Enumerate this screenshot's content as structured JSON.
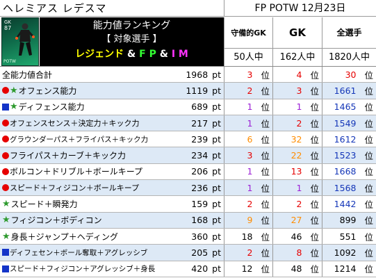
{
  "header": {
    "player_name": "ヘレミアス レデスマ",
    "event": "FP POTW 12月23日"
  },
  "card": {
    "position": "GK",
    "rating": "87",
    "badge": "POTW"
  },
  "category": {
    "line1": "能力値ランキング",
    "line2": "【 対象選手 】",
    "legend_word": "レジェンド",
    "amp": "&",
    "fp_word": "F P",
    "im_word": "I M"
  },
  "columns": [
    {
      "label": "守備的GK",
      "count": "50人中"
    },
    {
      "label": "GK",
      "count": "162人中"
    },
    {
      "label": "全選手",
      "count": "1820人中"
    }
  ],
  "units": {
    "points": "pt",
    "rank": "位"
  },
  "colors": {
    "red": "#e60000",
    "orange": "#ff8c00",
    "purple": "#9b1fd6",
    "blue": "#1436b8",
    "black": "#000000",
    "row_alt": "#dde9f6"
  },
  "rows": [
    {
      "marks": [],
      "name": "全能力値合計",
      "pts": "1968",
      "ranks": [
        {
          "v": "3",
          "c": "red"
        },
        {
          "v": "4",
          "c": "red"
        },
        {
          "v": "30",
          "c": "red"
        }
      ]
    },
    {
      "marks": [
        "circle",
        "star"
      ],
      "name": "オフェンス能力",
      "pts": "1119",
      "ranks": [
        {
          "v": "2",
          "c": "red"
        },
        {
          "v": "3",
          "c": "red"
        },
        {
          "v": "1661",
          "c": "blu"
        }
      ]
    },
    {
      "marks": [
        "square",
        "star"
      ],
      "name": "ディフェンス能力",
      "pts": "689",
      "ranks": [
        {
          "v": "1",
          "c": "pur"
        },
        {
          "v": "1",
          "c": "pur"
        },
        {
          "v": "1465",
          "c": "blu"
        }
      ]
    },
    {
      "marks": [
        "circle"
      ],
      "name": "オフェンスセンス＋決定力＋キック力",
      "pts": "217",
      "ranks": [
        {
          "v": "1",
          "c": "pur"
        },
        {
          "v": "2",
          "c": "red"
        },
        {
          "v": "1549",
          "c": "blu"
        }
      ]
    },
    {
      "marks": [
        "circle"
      ],
      "name": "グラウンダーパス＋フライパス＋キック力",
      "pts": "239",
      "ranks": [
        {
          "v": "6",
          "c": "org"
        },
        {
          "v": "32",
          "c": "org"
        },
        {
          "v": "1612",
          "c": "blu"
        }
      ]
    },
    {
      "marks": [
        "circle"
      ],
      "name": "フライパス＋カーブ＋キック力",
      "pts": "234",
      "ranks": [
        {
          "v": "3",
          "c": "red"
        },
        {
          "v": "22",
          "c": "org"
        },
        {
          "v": "1523",
          "c": "blu"
        }
      ]
    },
    {
      "marks": [
        "circle"
      ],
      "name": "ボルコン＋ドリブル＋ボールキープ",
      "pts": "206",
      "ranks": [
        {
          "v": "1",
          "c": "pur"
        },
        {
          "v": "13",
          "c": "red"
        },
        {
          "v": "1668",
          "c": "blu"
        }
      ]
    },
    {
      "marks": [
        "circle"
      ],
      "name": "スピード＋フィジコン＋ボールキープ",
      "pts": "236",
      "ranks": [
        {
          "v": "1",
          "c": "pur"
        },
        {
          "v": "1",
          "c": "pur"
        },
        {
          "v": "1568",
          "c": "blu"
        }
      ]
    },
    {
      "marks": [
        "star"
      ],
      "name": "スピード＋瞬発力",
      "pts": "159",
      "ranks": [
        {
          "v": "2",
          "c": "red"
        },
        {
          "v": "2",
          "c": "red"
        },
        {
          "v": "1442",
          "c": "blu"
        }
      ]
    },
    {
      "marks": [
        "star"
      ],
      "name": "フィジコン＋ボディコン",
      "pts": "168",
      "ranks": [
        {
          "v": "9",
          "c": "org"
        },
        {
          "v": "27",
          "c": "org"
        },
        {
          "v": "899",
          "c": "blk"
        }
      ]
    },
    {
      "marks": [
        "star"
      ],
      "name": "身長＋ジャンプ＋ヘディング",
      "pts": "360",
      "ranks": [
        {
          "v": "18",
          "c": "blk"
        },
        {
          "v": "46",
          "c": "blk"
        },
        {
          "v": "551",
          "c": "blk"
        }
      ]
    },
    {
      "marks": [
        "square"
      ],
      "name": "ディフェセン＋ボール奪取＋アグレッシブ",
      "pts": "205",
      "ranks": [
        {
          "v": "2",
          "c": "red"
        },
        {
          "v": "8",
          "c": "red"
        },
        {
          "v": "1092",
          "c": "blk"
        }
      ]
    },
    {
      "marks": [
        "square"
      ],
      "name": "スピード＋フィジコン＋アグレッシブ＋身長",
      "pts": "420",
      "ranks": [
        {
          "v": "12",
          "c": "blk"
        },
        {
          "v": "48",
          "c": "blk"
        },
        {
          "v": "1214",
          "c": "blk"
        }
      ]
    }
  ]
}
